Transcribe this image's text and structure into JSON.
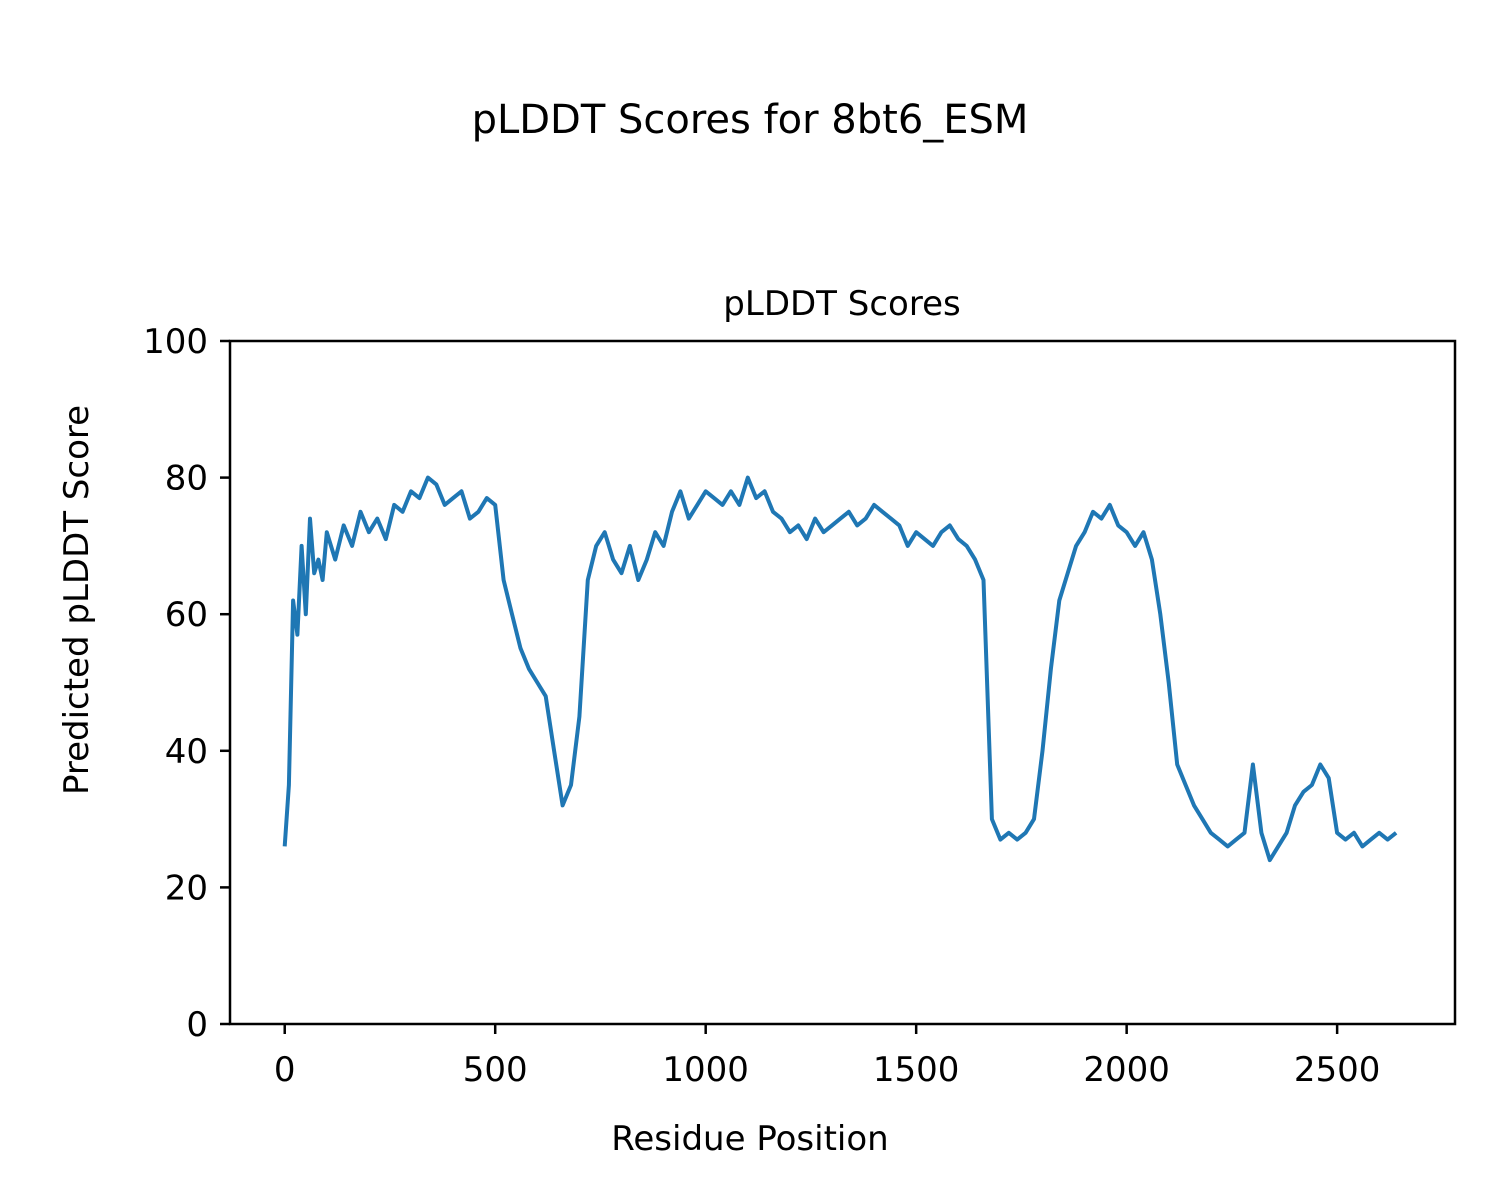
{
  "figure": {
    "suptitle": "pLDDT Scores for 8bt6_ESM"
  },
  "chart_data": {
    "type": "line",
    "title": "pLDDT Scores",
    "xlabel": "Residue Position",
    "ylabel": "Predicted pLDDT Score",
    "xlim": [
      -130,
      2780
    ],
    "ylim": [
      0,
      100
    ],
    "xticks": [
      0,
      500,
      1000,
      1500,
      2000,
      2500
    ],
    "yticks": [
      0,
      20,
      40,
      60,
      80,
      100
    ],
    "grid": false,
    "line_color": "#1f77b4",
    "series": [
      {
        "x": [
          0,
          10,
          20,
          30,
          40,
          50,
          60,
          70,
          80,
          90,
          100,
          120,
          140,
          160,
          180,
          200,
          220,
          240,
          260,
          280,
          300,
          320,
          340,
          360,
          380,
          400,
          420,
          440,
          460,
          480,
          500,
          520,
          540,
          560,
          580,
          600,
          620,
          640,
          660,
          680,
          700,
          720,
          740,
          760,
          780,
          800,
          820,
          840,
          860,
          880,
          900,
          920,
          940,
          960,
          980,
          1000,
          1020,
          1040,
          1060,
          1080,
          1100,
          1120,
          1140,
          1160,
          1180,
          1200,
          1220,
          1240,
          1260,
          1280,
          1300,
          1320,
          1340,
          1360,
          1380,
          1400,
          1420,
          1440,
          1460,
          1480,
          1500,
          1520,
          1540,
          1560,
          1580,
          1600,
          1620,
          1640,
          1660,
          1680,
          1700,
          1720,
          1740,
          1760,
          1780,
          1800,
          1820,
          1840,
          1860,
          1880,
          1900,
          1920,
          1940,
          1960,
          1980,
          2000,
          2020,
          2040,
          2060,
          2080,
          2100,
          2120,
          2140,
          2160,
          2180,
          2200,
          2220,
          2240,
          2260,
          2280,
          2300,
          2320,
          2340,
          2360,
          2380,
          2400,
          2420,
          2440,
          2460,
          2480,
          2500,
          2520,
          2540,
          2560,
          2580,
          2600,
          2620,
          2640
        ],
        "y": [
          26,
          35,
          62,
          57,
          70,
          60,
          74,
          66,
          68,
          65,
          72,
          68,
          73,
          70,
          75,
          72,
          74,
          71,
          76,
          75,
          78,
          77,
          80,
          79,
          76,
          77,
          78,
          74,
          75,
          77,
          76,
          65,
          60,
          55,
          52,
          50,
          48,
          40,
          32,
          35,
          45,
          65,
          70,
          72,
          68,
          66,
          70,
          65,
          68,
          72,
          70,
          75,
          78,
          74,
          76,
          78,
          77,
          76,
          78,
          76,
          80,
          77,
          78,
          75,
          74,
          72,
          73,
          71,
          74,
          72,
          73,
          74,
          75,
          73,
          74,
          76,
          75,
          74,
          73,
          70,
          72,
          71,
          70,
          72,
          73,
          71,
          70,
          68,
          65,
          30,
          27,
          28,
          27,
          28,
          30,
          40,
          52,
          62,
          66,
          70,
          72,
          75,
          74,
          76,
          73,
          72,
          70,
          72,
          68,
          60,
          50,
          38,
          35,
          32,
          30,
          28,
          27,
          26,
          27,
          28,
          38,
          28,
          24,
          26,
          28,
          32,
          34,
          35,
          38,
          36,
          28,
          27,
          28,
          26,
          27,
          28,
          27,
          28
        ]
      }
    ]
  }
}
